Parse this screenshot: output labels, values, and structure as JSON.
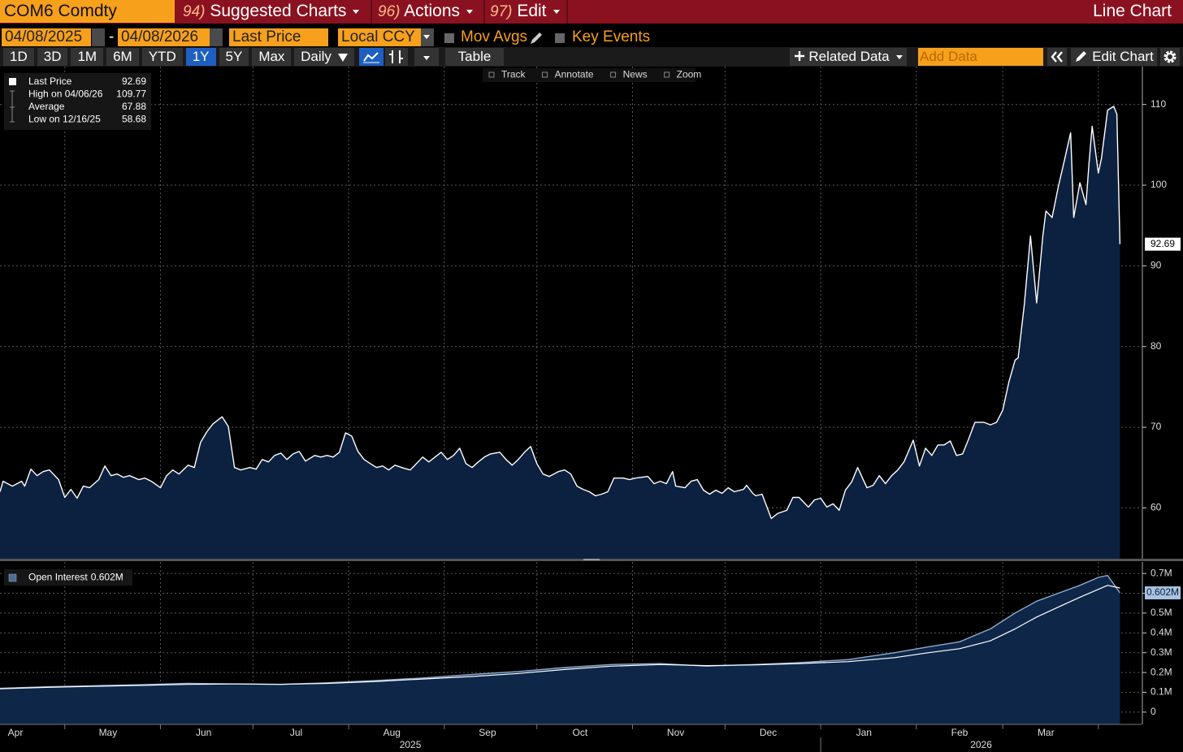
{
  "header": {
    "ticker": "COM6 Comdty",
    "menus": [
      {
        "key": "94)",
        "label": "Suggested Charts"
      },
      {
        "key": "96)",
        "label": "Actions"
      },
      {
        "key": "97)",
        "label": "Edit"
      }
    ],
    "chart_type": "Line Chart"
  },
  "controls": {
    "start_date": "04/08/2025",
    "separator": "-",
    "end_date": "04/08/2026",
    "field": "Last Price",
    "currency": "Local CCY",
    "options": [
      "Mov Avgs",
      "Key Events"
    ],
    "ranges": [
      "1D",
      "3D",
      "1M",
      "6M",
      "YTD",
      "1Y",
      "5Y",
      "Max"
    ],
    "selected_range": "1Y",
    "frequency": "Daily",
    "table": "Table",
    "related_data": "Related Data",
    "add_data_placeholder": "Add Data",
    "edit_chart": "Edit Chart",
    "tools": [
      "Track",
      "Annotate",
      "News",
      "Zoom"
    ]
  },
  "chart_data": [
    {
      "type": "area",
      "x": [
        "2025-04-10",
        "2025-04-11",
        "2025-04-14",
        "2025-04-17",
        "2025-04-18",
        "2025-04-20",
        "2025-04-22",
        "2025-04-24",
        "2025-04-26",
        "2025-04-29",
        "2025-05-01",
        "2025-05-03",
        "2025-05-05",
        "2025-05-07",
        "2025-05-09",
        "2025-05-12",
        "2025-05-14",
        "2025-05-16",
        "2025-05-18",
        "2025-05-20",
        "2025-05-22",
        "2025-05-25",
        "2025-05-27",
        "2025-05-29",
        "2025-06-01",
        "2025-06-03",
        "2025-06-05",
        "2025-06-07",
        "2025-06-10",
        "2025-06-12",
        "2025-06-14",
        "2025-06-16",
        "2025-06-18",
        "2025-06-21",
        "2025-06-23",
        "2025-06-25",
        "2025-06-27",
        "2025-06-30",
        "2025-07-02",
        "2025-07-04",
        "2025-07-06",
        "2025-07-08",
        "2025-07-10",
        "2025-07-12",
        "2025-07-14",
        "2025-07-16",
        "2025-07-18",
        "2025-07-21",
        "2025-07-23",
        "2025-07-25",
        "2025-07-27",
        "2025-07-29",
        "2025-07-31",
        "2025-08-02",
        "2025-08-04",
        "2025-08-06",
        "2025-08-08",
        "2025-08-10",
        "2025-08-12",
        "2025-08-14",
        "2025-08-16",
        "2025-08-19",
        "2025-08-21",
        "2025-08-23",
        "2025-08-25",
        "2025-08-27",
        "2025-08-29",
        "2025-08-31",
        "2025-09-02",
        "2025-09-04",
        "2025-09-06",
        "2025-09-08",
        "2025-09-10",
        "2025-09-12",
        "2025-09-14",
        "2025-09-16",
        "2025-09-19",
        "2025-09-21",
        "2025-09-23",
        "2025-09-25",
        "2025-09-27",
        "2025-09-29",
        "2025-10-01",
        "2025-10-03",
        "2025-10-05",
        "2025-10-08",
        "2025-10-10",
        "2025-10-12",
        "2025-10-14",
        "2025-10-16",
        "2025-10-18",
        "2025-10-20",
        "2025-10-22",
        "2025-10-24",
        "2025-10-26",
        "2025-10-29",
        "2025-10-31",
        "2025-11-02",
        "2025-11-04",
        "2025-11-06",
        "2025-11-08",
        "2025-11-10",
        "2025-11-12",
        "2025-11-14",
        "2025-11-15",
        "2025-11-18",
        "2025-11-20",
        "2025-11-22",
        "2025-11-24",
        "2025-11-26",
        "2025-11-28",
        "2025-11-30",
        "2025-12-02",
        "2025-12-04",
        "2025-12-07",
        "2025-12-08",
        "2025-12-10",
        "2025-12-11",
        "2025-12-13",
        "2025-12-14",
        "2025-12-16",
        "2025-12-18",
        "2025-12-21",
        "2025-12-23",
        "2025-12-25",
        "2025-12-28",
        "2025-12-30",
        "2026-01-01",
        "2026-01-03",
        "2026-01-05",
        "2026-01-07",
        "2026-01-09",
        "2026-01-11",
        "2026-01-13",
        "2026-01-16",
        "2026-01-18",
        "2026-01-20",
        "2026-01-22",
        "2026-01-24",
        "2026-01-26",
        "2026-01-28",
        "2026-01-31",
        "2026-02-02",
        "2026-02-04",
        "2026-02-06",
        "2026-02-08",
        "2026-02-10",
        "2026-02-12",
        "2026-02-14",
        "2026-02-16",
        "2026-02-18",
        "2026-02-20",
        "2026-02-23",
        "2026-02-25",
        "2026-02-27",
        "2026-03-01",
        "2026-03-03",
        "2026-03-05",
        "2026-03-06",
        "2026-03-08",
        "2026-03-10",
        "2026-03-12",
        "2026-03-14",
        "2026-03-15",
        "2026-03-17",
        "2026-03-19",
        "2026-03-21",
        "2026-03-23",
        "2026-03-24",
        "2026-03-26",
        "2026-03-28",
        "2026-03-29",
        "2026-03-30",
        "2026-04-01",
        "2026-04-02",
        "2026-04-04",
        "2026-04-06",
        "2026-04-07",
        "2026-04-08"
      ],
      "series": [
        {
          "color": "#ffffff",
          "fill": "#0b213f",
          "values": [
            62.0,
            63.3,
            62.7,
            63.3,
            62.7,
            64.8,
            64.0,
            64.5,
            64.7,
            63.5,
            61.3,
            62.3,
            61.2,
            62.7,
            62.5,
            63.5,
            65.2,
            64.0,
            64.2,
            63.8,
            64.0,
            63.5,
            63.7,
            63.3,
            62.5,
            64.0,
            64.7,
            64.2,
            65.3,
            65.0,
            68.1,
            69.4,
            70.4,
            71.3,
            70.1,
            65.0,
            64.7,
            65.0,
            64.8,
            66.0,
            65.7,
            66.5,
            66.8,
            66.0,
            66.7,
            67.0,
            65.8,
            66.5,
            66.3,
            66.5,
            66.3,
            66.9,
            69.3,
            68.9,
            67.0,
            66.0,
            65.5,
            65.0,
            65.2,
            64.7,
            65.3,
            64.9,
            64.7,
            65.5,
            66.3,
            65.7,
            66.3,
            66.9,
            66.0,
            66.5,
            67.4,
            65.5,
            65.0,
            65.7,
            66.3,
            66.7,
            66.9,
            66.0,
            65.3,
            66.0,
            66.9,
            67.6,
            65.5,
            64.2,
            63.9,
            64.5,
            64.7,
            64.2,
            62.7,
            62.3,
            62.0,
            61.5,
            61.7,
            62.0,
            63.7,
            63.7,
            63.5,
            63.7,
            63.8,
            63.9,
            63.0,
            63.3,
            63.0,
            64.5,
            62.7,
            62.5,
            63.3,
            63.5,
            62.2,
            61.7,
            62.2,
            61.8,
            62.5,
            62.0,
            62.3,
            62.8,
            61.8,
            61.5,
            61.7,
            60.7,
            58.68,
            59.3,
            59.7,
            61.3,
            61.3,
            60.1,
            61.0,
            61.2,
            60.1,
            60.5,
            59.7,
            62.2,
            63.2,
            65.0,
            62.5,
            62.8,
            64.0,
            63.0,
            64.0,
            64.7,
            65.7,
            68.4,
            65.2,
            67.4,
            66.5,
            67.8,
            67.8,
            68.3,
            66.5,
            66.7,
            68.6,
            70.6,
            70.6,
            70.3,
            70.6,
            72.1,
            75.6,
            78.3,
            78.6,
            85.2,
            93.7,
            85.4,
            93.7,
            96.8,
            96.0,
            99.8,
            103.1,
            106.5,
            96.0,
            100.3,
            97.6,
            102.8,
            107.3,
            101.5,
            103.3,
            109.3,
            109.77,
            108.8,
            92.69
          ]
        }
      ],
      "stats": [
        {
          "label": "Last Price",
          "value": 92.69
        },
        {
          "label": "High on 04/06/26",
          "value": 109.77
        },
        {
          "label": "Average",
          "value": 67.88
        },
        {
          "label": "Low on 12/16/25",
          "value": 58.68
        }
      ],
      "xlim": [
        "2025-04-10",
        "2026-04-15"
      ],
      "ylim": [
        53.7,
        114.7
      ],
      "yticks": [
        60,
        70,
        80,
        90,
        100,
        110
      ],
      "grid": true
    },
    {
      "type": "area",
      "x": [
        "2025-04-10",
        "2025-04-25",
        "2025-05-10",
        "2025-05-25",
        "2025-06-10",
        "2025-06-25",
        "2025-07-10",
        "2025-07-25",
        "2025-08-10",
        "2025-08-25",
        "2025-09-10",
        "2025-09-25",
        "2025-10-10",
        "2025-10-25",
        "2025-11-10",
        "2025-11-25",
        "2025-12-10",
        "2025-12-25",
        "2026-01-10",
        "2026-01-25",
        "2026-02-05",
        "2026-02-15",
        "2026-02-25",
        "2026-03-05",
        "2026-03-12",
        "2026-03-19",
        "2026-03-26",
        "2026-04-01",
        "2026-04-04",
        "2026-04-08"
      ],
      "series": [
        {
          "name": "Open Interest",
          "color": "#8fa9cc",
          "fill": "#0e2748",
          "values": [
            0.12,
            0.128,
            0.133,
            0.138,
            0.145,
            0.142,
            0.14,
            0.148,
            0.16,
            0.172,
            0.19,
            0.205,
            0.225,
            0.24,
            0.245,
            0.232,
            0.24,
            0.25,
            0.265,
            0.3,
            0.33,
            0.355,
            0.42,
            0.5,
            0.56,
            0.6,
            0.64,
            0.68,
            0.69,
            0.602
          ],
          "value_labels": [
            null,
            null,
            null,
            null,
            null,
            null,
            null,
            null,
            null,
            null,
            null,
            null,
            null,
            null,
            null,
            null,
            null,
            null,
            null,
            null,
            null,
            null,
            null,
            null,
            null,
            null,
            null,
            null,
            null,
            "0.602M"
          ]
        },
        {
          "type": "line",
          "color": "#ffffff",
          "values": [
            0.118,
            0.125,
            0.13,
            0.135,
            0.14,
            0.142,
            0.14,
            0.145,
            0.155,
            0.167,
            0.18,
            0.195,
            0.215,
            0.232,
            0.24,
            0.235,
            0.238,
            0.245,
            0.255,
            0.275,
            0.3,
            0.32,
            0.36,
            0.42,
            0.48,
            0.53,
            0.58,
            0.62,
            0.64,
            0.627
          ]
        }
      ],
      "xlim": [
        "2025-04-10",
        "2026-04-15"
      ],
      "ylim": [
        -0.062,
        0.758
      ],
      "yticks": [
        0,
        {
          "value": 0.1,
          "label": "0.1M"
        },
        {
          "value": 0.2,
          "label": "0.2M"
        },
        {
          "value": 0.3,
          "label": "0.3M"
        },
        {
          "value": 0.4,
          "label": "0.4M"
        },
        {
          "value": 0.5,
          "label": "0.5M"
        },
        {
          "value": 0.6,
          "label": "0.6M"
        },
        {
          "value": 0.7,
          "label": "0.7M"
        }
      ],
      "grid": true,
      "xticks": [
        {
          "value": "2025-04-15",
          "label": "Apr"
        },
        {
          "value": "2025-05-15",
          "label": "May"
        },
        {
          "value": "2025-06-15",
          "label": "Jun"
        },
        {
          "value": "2025-07-15",
          "label": "Jul"
        },
        {
          "value": "2025-08-15",
          "label": "Aug"
        },
        {
          "value": "2025-09-15",
          "label": "Sep"
        },
        {
          "value": "2025-10-15",
          "label": "Oct"
        },
        {
          "value": "2025-11-15",
          "label": "Nov"
        },
        {
          "value": "2025-12-15",
          "label": "Dec"
        },
        {
          "value": "2026-01-15",
          "label": "Jan"
        },
        {
          "value": "2026-02-15",
          "label": "Feb"
        },
        {
          "value": "2026-03-15",
          "label": "Mar"
        }
      ],
      "xgrid": [
        "2025-05-01",
        "2025-06-01",
        "2025-07-01",
        "2025-08-01",
        "2025-09-01",
        "2025-10-01",
        "2025-11-01",
        "2025-12-01",
        "2026-01-01",
        "2026-02-01",
        "2026-03-01",
        "2026-04-01"
      ],
      "years": [
        "2025",
        "2026"
      ]
    }
  ]
}
